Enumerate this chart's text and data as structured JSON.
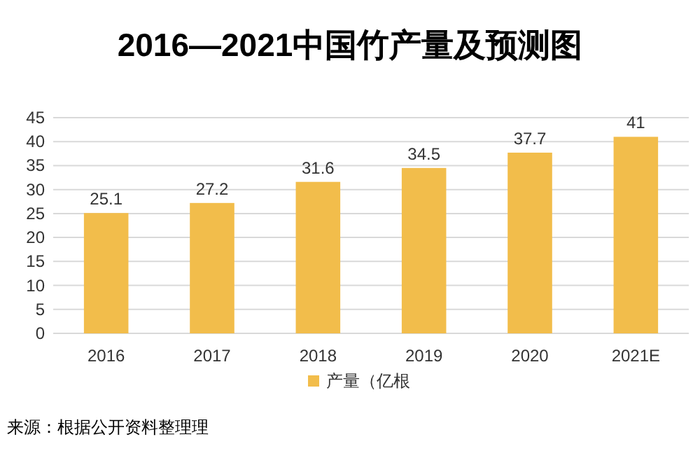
{
  "chart_data": {
    "type": "bar",
    "title": "2016—2021中国竹产量及预测图",
    "categories": [
      "2016",
      "2017",
      "2018",
      "2019",
      "2020",
      "2021E"
    ],
    "series": [
      {
        "name": "产量（亿根",
        "color": "#f2bd4b",
        "values": [
          25.1,
          27.2,
          31.6,
          34.5,
          37.7,
          41
        ]
      }
    ],
    "ylim": [
      0,
      45
    ],
    "yticks": [
      0,
      5,
      10,
      15,
      20,
      25,
      30,
      35,
      40,
      45
    ],
    "grid": "y",
    "legend": "bottom",
    "data_labels": true,
    "annotations": [
      "来源：根据公开资料整理理"
    ]
  }
}
